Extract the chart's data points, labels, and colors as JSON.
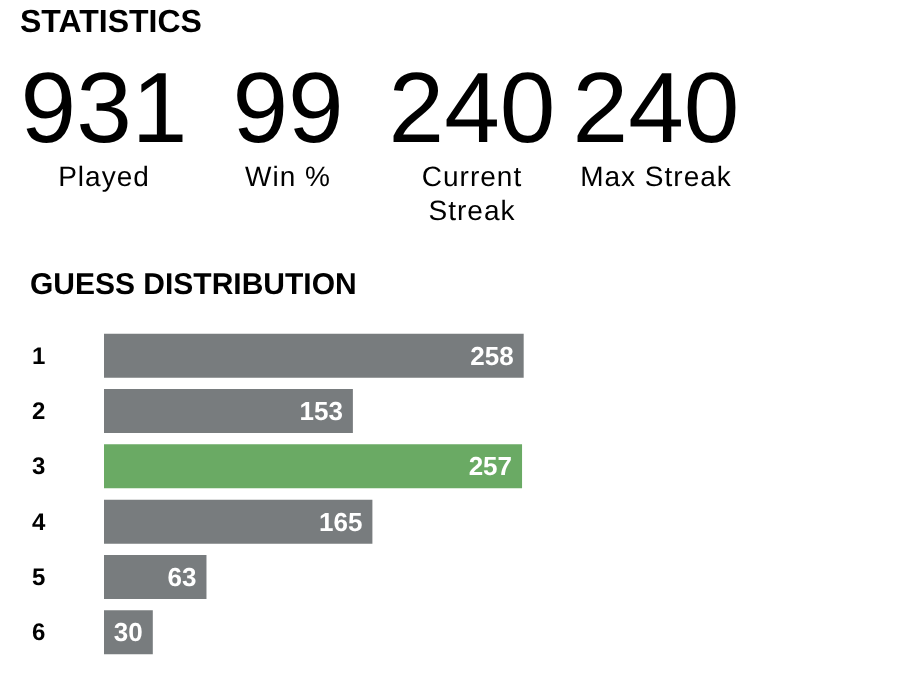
{
  "chart_data": [
    {
      "type": "other",
      "title": "STATISTICS",
      "categories": [
        "Played",
        "Win %",
        "Current Streak",
        "Max Streak"
      ],
      "values": [
        931,
        99,
        240,
        240
      ],
      "data_labels": true
    },
    {
      "type": "bar",
      "title": "GUESS DISTRIBUTION",
      "orientation": "horizontal",
      "categories": [
        "1",
        "2",
        "3",
        "4",
        "5",
        "6"
      ],
      "values": [
        258,
        153,
        257,
        165,
        63,
        30
      ],
      "colors": [
        "#787c7e",
        "#787c7e",
        "#6aaa64",
        "#787c7e",
        "#787c7e",
        "#787c7e"
      ],
      "data_labels": true
    }
  ]
}
